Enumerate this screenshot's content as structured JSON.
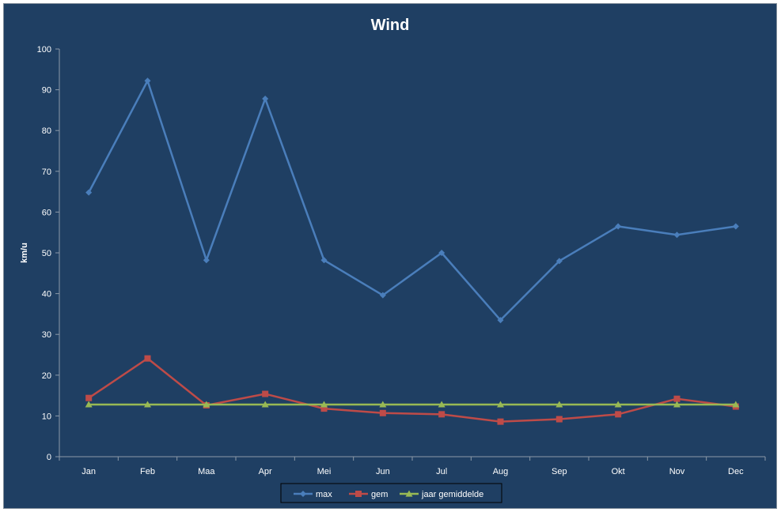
{
  "chart_data": {
    "type": "line",
    "title": "Wind",
    "xlabel": "",
    "ylabel": "km/u",
    "ylim": [
      0,
      100
    ],
    "ytick_step": 10,
    "categories": [
      "Jan",
      "Feb",
      "Maa",
      "Apr",
      "Mei",
      "Jun",
      "Jul",
      "Aug",
      "Sep",
      "Okt",
      "Nov",
      "Dec"
    ],
    "grid": false,
    "legend_position": "bottom",
    "series": [
      {
        "name": "max",
        "color": "#4a7ebb",
        "marker": "diamond",
        "values": [
          64.8,
          92.2,
          48.2,
          87.8,
          48.2,
          39.6,
          50.0,
          33.5,
          48.0,
          56.5,
          54.4,
          56.5
        ]
      },
      {
        "name": "gem",
        "color": "#be4b48",
        "marker": "square",
        "values": [
          14.4,
          24.1,
          12.6,
          15.4,
          11.8,
          10.7,
          10.4,
          8.6,
          9.2,
          10.4,
          14.2,
          12.3
        ]
      },
      {
        "name": "jaar gemiddelde",
        "color": "#98b954",
        "marker": "triangle",
        "values": [
          12.8,
          12.8,
          12.8,
          12.8,
          12.8,
          12.8,
          12.8,
          12.8,
          12.8,
          12.8,
          12.8,
          12.8
        ]
      }
    ]
  }
}
